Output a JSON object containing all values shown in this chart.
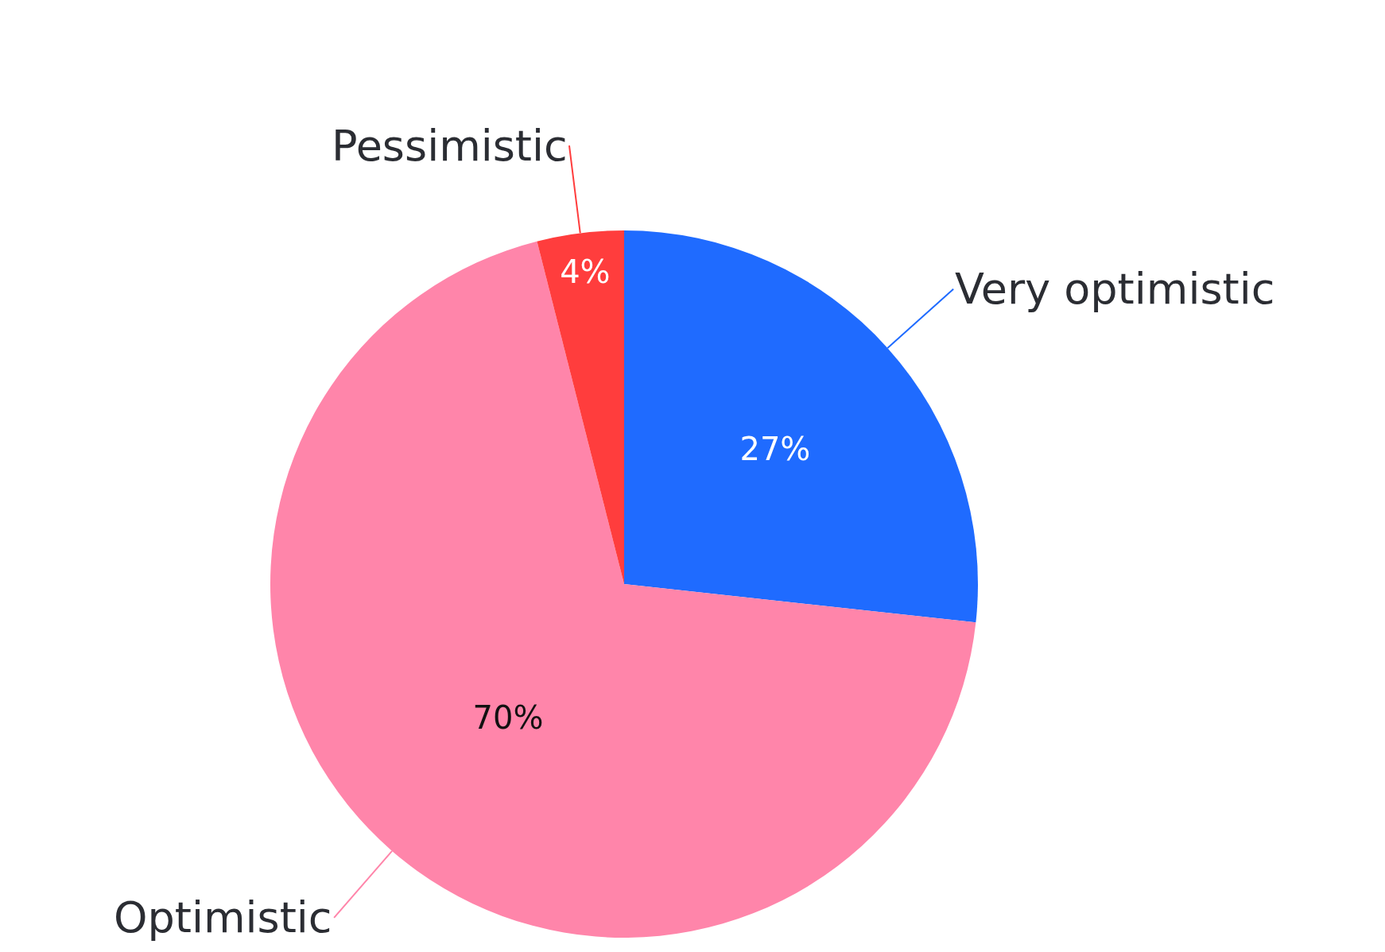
{
  "chart_data": {
    "type": "pie",
    "categories": [
      "Very optimistic",
      "Optimistic",
      "Pessimistic"
    ],
    "values": [
      27,
      70,
      4
    ],
    "colors": [
      "#1f6bff",
      "#ff85aa",
      "#ff3d3d"
    ],
    "value_labels": [
      "27%",
      "70%",
      "4%"
    ],
    "legend": false
  }
}
